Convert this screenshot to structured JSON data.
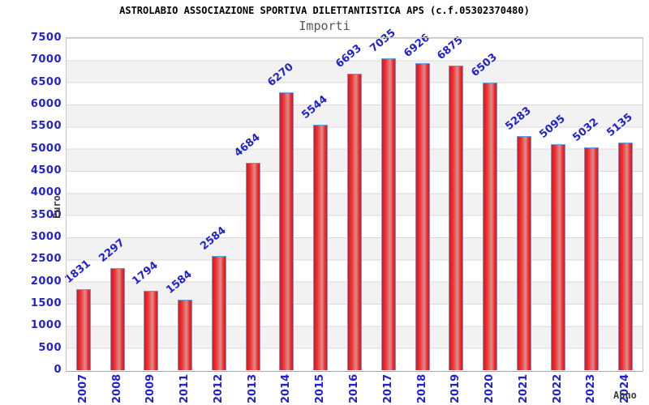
{
  "chart_data": {
    "type": "bar",
    "title": "ASTROLABIO ASSOCIAZIONE SPORTIVA DILETTANTISTICA APS (c.f.05302370480)",
    "subtitle": "Importi",
    "xlabel": "Anno",
    "ylabel": "Euro",
    "categories": [
      "2007",
      "2008",
      "2009",
      "2011",
      "2012",
      "2013",
      "2014",
      "2015",
      "2016",
      "2017",
      "2018",
      "2019",
      "2020",
      "2021",
      "2022",
      "2023",
      "2024"
    ],
    "values": [
      1831,
      2297,
      1794,
      1584,
      2584,
      4684,
      6270,
      5544,
      6693,
      7035,
      6926,
      6875,
      6503,
      5283,
      5095,
      5032,
      5135
    ],
    "ylim": [
      0,
      7500
    ],
    "ytick_step": 500,
    "grid": true,
    "legend": "none",
    "layout_hints": {
      "bands_alternating": true,
      "x_tick_rotation_deg": 90,
      "value_label_rotation_deg": 40
    },
    "colors": {
      "bar_fill_edge": "#e01515",
      "bar_fill_main": "#ee3333",
      "bar_fill_center": "#d89090",
      "bar_border": "#6699dd",
      "label_text": "#2222cc",
      "title_text": "#000000",
      "subtitle_text": "#555555",
      "axis_title_text": "#3d3d3d",
      "band_gray": "#f2f2f2",
      "grid_line": "#d9d9d9",
      "plot_border": "#c4c4c4",
      "background": "#ffffff"
    }
  }
}
